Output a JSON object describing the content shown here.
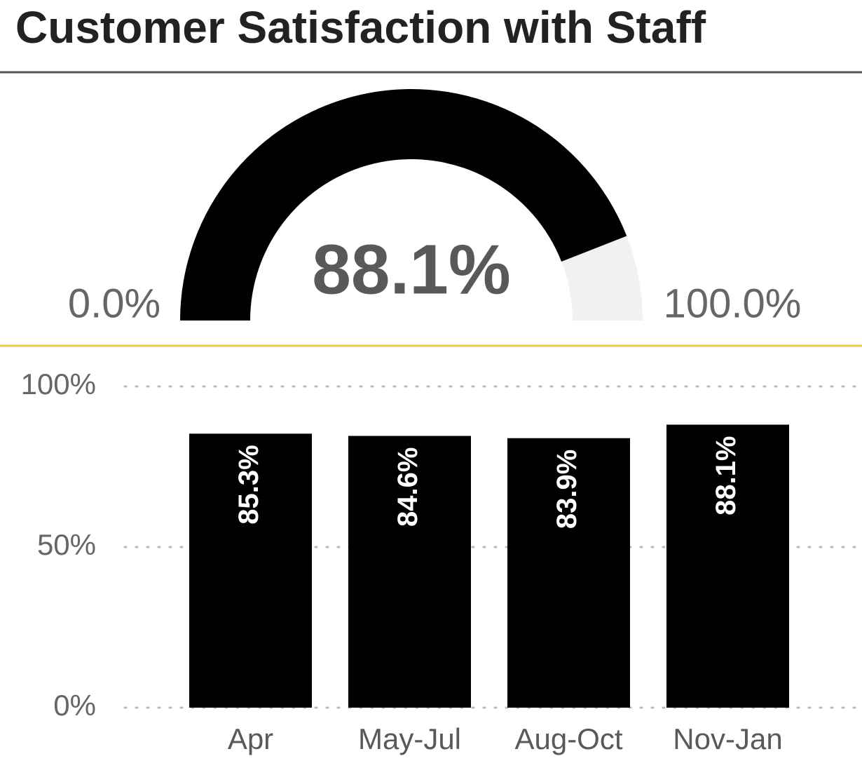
{
  "title": "Customer Satisfaction with Staff",
  "chart_data": [
    {
      "type": "gauge",
      "values": [
        88.1
      ],
      "value_labels": [
        "88.1%"
      ],
      "color": "#000000",
      "ylim": [
        0,
        100
      ],
      "yticks": [
        {
          "value": 0,
          "label": "0.0%"
        },
        {
          "value": 100,
          "label": "100.0%"
        }
      ]
    },
    {
      "type": "bar",
      "categories": [
        "Apr",
        "May-Jul",
        "Aug-Oct",
        "Nov-Jan"
      ],
      "values": [
        85.3,
        84.6,
        83.9,
        88.1
      ],
      "value_labels": [
        "85.3%",
        "84.6%",
        "83.9%",
        "88.1%"
      ],
      "color": "#000000",
      "ylim": [
        0,
        100
      ],
      "yticks": [
        {
          "value": 0,
          "label": "0%"
        },
        {
          "value": 50,
          "label": "50%"
        },
        {
          "value": 100,
          "label": "100%"
        }
      ],
      "grid": true
    }
  ]
}
